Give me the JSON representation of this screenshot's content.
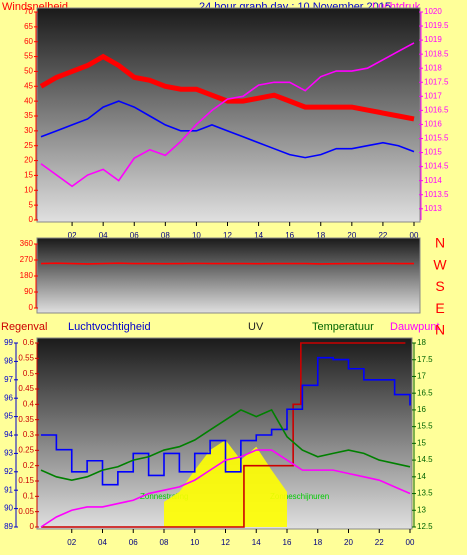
{
  "chart_data": [
    {
      "type": "line",
      "title": "24 hour graph day : 10 November 2015",
      "x": [
        0,
        1,
        2,
        3,
        4,
        5,
        6,
        7,
        8,
        9,
        10,
        11,
        12,
        13,
        14,
        15,
        16,
        17,
        18,
        19,
        20,
        21,
        22,
        23,
        24
      ],
      "xlim": [
        0,
        24
      ],
      "xticks": [
        {
          "value": 2,
          "label": "02"
        },
        {
          "value": 4,
          "label": "04"
        },
        {
          "value": 6,
          "label": "06"
        },
        {
          "value": 8,
          "label": "08"
        },
        10,
        12,
        14,
        16,
        18,
        20,
        22,
        {
          "value": 24,
          "label": "00"
        }
      ],
      "ylim": [
        0,
        70
      ],
      "yticks": [
        0,
        5,
        10,
        15,
        20,
        25,
        30,
        35,
        40,
        45,
        50,
        55,
        60,
        65,
        70
      ],
      "y2lim": [
        1012.6,
        1020
      ],
      "y2ticks": [
        1013,
        1013.5,
        1014,
        1014.5,
        1015,
        1015.5,
        1016,
        1016.5,
        1017,
        1017.5,
        1018,
        1018.5,
        1019,
        1019.5,
        1020
      ],
      "series": [
        {
          "name": "Windsnelheid",
          "color": "#ff0000",
          "values": [
            45,
            48,
            50,
            52,
            55,
            52,
            48,
            47,
            45,
            44,
            44,
            42,
            40,
            40,
            41,
            42,
            40,
            38,
            38,
            38,
            38,
            37,
            36,
            35,
            34
          ]
        },
        {
          "color": "#0000ff",
          "values": [
            28,
            30,
            32,
            34,
            38,
            40,
            38,
            35,
            32,
            30,
            30,
            32,
            30,
            28,
            26,
            24,
            22,
            21,
            22,
            24,
            24,
            25,
            26,
            25,
            23
          ]
        },
        {
          "name": "Luchtdruk",
          "color": "#ff00ff",
          "axis": "y2",
          "values": [
            1014.6,
            1014.2,
            1013.8,
            1014.2,
            1014.4,
            1014.0,
            1014.8,
            1015.1,
            1014.9,
            1015.4,
            1016.0,
            1016.5,
            1016.9,
            1017.0,
            1017.4,
            1017.5,
            1017.5,
            1017.2,
            1017.7,
            1017.9,
            1017.9,
            1018.0,
            1018.3,
            1018.6,
            1018.9
          ]
        }
      ]
    },
    {
      "type": "line",
      "x": [
        0,
        1,
        2,
        3,
        4,
        5,
        6,
        7,
        8,
        9,
        10,
        11,
        12,
        13,
        14,
        15,
        16,
        17,
        18,
        19,
        20,
        21,
        22,
        23,
        24
      ],
      "xlim": [
        0,
        24
      ],
      "ylim": [
        0,
        360
      ],
      "yticks": [
        0,
        90,
        180,
        270,
        360
      ],
      "compass": [
        "N",
        "W",
        "S",
        "E",
        "N"
      ],
      "series": [
        {
          "color": "#ff0000",
          "values": [
            250,
            252,
            250,
            248,
            250,
            252,
            250,
            250,
            249,
            250,
            251,
            250,
            250,
            250,
            249,
            250,
            250,
            250,
            248,
            249,
            250,
            250,
            251,
            250,
            250
          ]
        }
      ]
    },
    {
      "type": "line",
      "x": [
        0,
        1,
        2,
        3,
        4,
        5,
        6,
        7,
        8,
        9,
        10,
        11,
        12,
        13,
        14,
        15,
        16,
        17,
        18,
        19,
        20,
        21,
        22,
        23,
        24
      ],
      "xlim": [
        0,
        24
      ],
      "xticks": [
        {
          "value": 2,
          "label": "02"
        },
        {
          "value": 4,
          "label": "04"
        },
        {
          "value": 6,
          "label": "06"
        },
        {
          "value": 8,
          "label": "08"
        },
        10,
        12,
        14,
        16,
        18,
        20,
        22,
        {
          "value": 24,
          "label": "00"
        }
      ],
      "ylim": [
        89,
        99
      ],
      "yticks": [
        89,
        90,
        91,
        92,
        93,
        94,
        95,
        96,
        97,
        98,
        99
      ],
      "y2lim": [
        12.5,
        18
      ],
      "y2ticks": [
        12.5,
        13,
        13.5,
        14,
        14.5,
        15,
        15.5,
        16,
        16.5,
        17,
        17.5,
        18
      ],
      "y3lim": [
        0,
        0.6
      ],
      "y3ticks": [
        0,
        0.05,
        0.1,
        0.15,
        0.2,
        0.25,
        0.3,
        0.35,
        0.4,
        0.45,
        0.5,
        0.55,
        0.6
      ],
      "annotations": [
        "UV",
        "Zonnestraling",
        "Zonneschijnuren"
      ],
      "series": [
        {
          "color": "#ffff00",
          "axis": "y2",
          "fill": true,
          "x": [
            8,
            9,
            10,
            11,
            12,
            13,
            14,
            15,
            16
          ],
          "values": [
            13.25,
            13.55,
            14.2,
            14.8,
            15.1,
            14.5,
            14.9,
            14.2,
            13.55
          ]
        },
        {
          "name": "Regenval",
          "color": "#cc0000",
          "axis": "y3",
          "step": true,
          "x": [
            0,
            13.2,
            16.4,
            16.9,
            23.7
          ],
          "values": [
            0,
            0.2,
            0.4,
            0.6,
            0.6
          ]
        },
        {
          "name": "Luchtvochtigheid",
          "color": "#0000ff",
          "step": true,
          "values": [
            94,
            93.2,
            92,
            92.6,
            91.3,
            92,
            93,
            91.8,
            93,
            92,
            93,
            93.7,
            92,
            93.7,
            94,
            94.3,
            95.4,
            96.7,
            98.2,
            98.1,
            97.6,
            97,
            97,
            96.2,
            95.6
          ]
        },
        {
          "name": "Temperatuur",
          "color": "#008000",
          "axis": "y2",
          "values": [
            14.2,
            14.0,
            13.9,
            14.0,
            14.2,
            14.3,
            14.5,
            14.6,
            14.8,
            14.9,
            15.1,
            15.4,
            15.7,
            16.0,
            15.8,
            16.0,
            15.2,
            14.8,
            14.6,
            14.7,
            14.8,
            14.7,
            14.5,
            14.4,
            14.3
          ]
        },
        {
          "name": "Dauwpunt",
          "color": "#ff00ff",
          "axis": "y2",
          "values": [
            12.5,
            12.8,
            13.0,
            13.1,
            13.1,
            13.2,
            13.3,
            13.5,
            13.6,
            13.7,
            13.9,
            14.2,
            14.5,
            14.6,
            14.8,
            14.8,
            14.5,
            14.2,
            14.2,
            14.2,
            14.1,
            14.0,
            13.9,
            13.7,
            13.5
          ]
        }
      ]
    }
  ]
}
